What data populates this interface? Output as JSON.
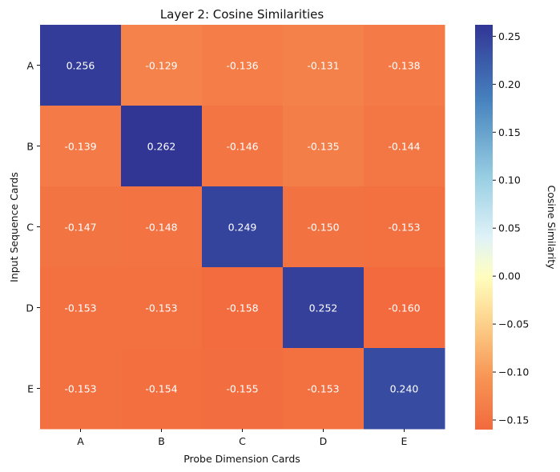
{
  "chart_data": {
    "type": "heatmap",
    "title": "Layer 2: Cosine Similarities",
    "xlabel": "Probe Dimension Cards",
    "ylabel": "Input Sequence Cards",
    "x_categories": [
      "A",
      "B",
      "C",
      "D",
      "E"
    ],
    "y_categories": [
      "A",
      "B",
      "C",
      "D",
      "E"
    ],
    "values": [
      [
        0.256,
        -0.129,
        -0.136,
        -0.131,
        -0.138
      ],
      [
        -0.139,
        0.262,
        -0.146,
        -0.135,
        -0.144
      ],
      [
        -0.147,
        -0.148,
        0.249,
        -0.15,
        -0.153
      ],
      [
        -0.153,
        -0.153,
        -0.158,
        0.252,
        -0.16
      ],
      [
        -0.153,
        -0.154,
        -0.155,
        -0.153,
        0.24
      ]
    ],
    "value_labels": [
      [
        "0.256",
        "-0.129",
        "-0.136",
        "-0.131",
        "-0.138"
      ],
      [
        "-0.139",
        "0.262",
        "-0.146",
        "-0.135",
        "-0.144"
      ],
      [
        "-0.147",
        "-0.148",
        "0.249",
        "-0.150",
        "-0.153"
      ],
      [
        "-0.153",
        "-0.153",
        "-0.158",
        "0.252",
        "-0.160"
      ],
      [
        "-0.153",
        "-0.154",
        "-0.155",
        "-0.153",
        "0.240"
      ]
    ],
    "colorbar": {
      "label": "Cosine Similarity",
      "range": [
        -0.16,
        0.262
      ],
      "ticks": [
        -0.15,
        -0.1,
        -0.05,
        0.0,
        0.05,
        0.1,
        0.15,
        0.2,
        0.25
      ],
      "tick_labels": [
        "−0.15",
        "−0.10",
        "−0.05",
        "0.00",
        "0.05",
        "0.10",
        "0.15",
        "0.20",
        "0.25"
      ],
      "colormap": "RdYlBu (centered at 0)",
      "colors": {
        "negative_end": "#f26a3e",
        "center": "#ffffbf",
        "positive_end": "#313695"
      }
    }
  }
}
